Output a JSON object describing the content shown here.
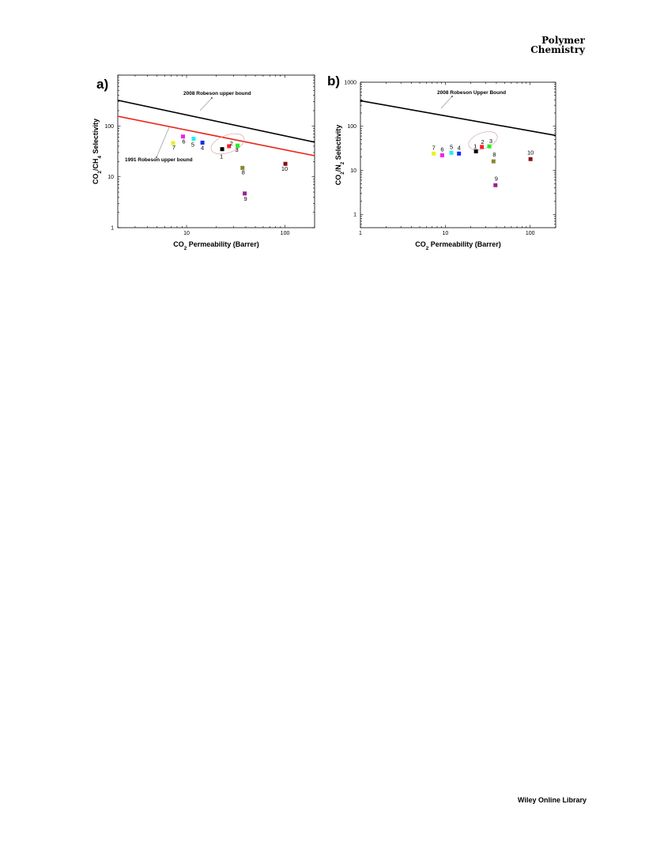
{
  "header": {
    "journal_line1": "Polymer",
    "journal_line2": "Chemistry"
  },
  "footer": {
    "publisher": "Wiley Online Library"
  },
  "chart_data": [
    {
      "type": "scatter",
      "panel": "a)",
      "xlabel": "CO2 Permeability (Barrer)",
      "ylabel": "CO2/CH4 Selectivity",
      "xscale": "log",
      "yscale": "log",
      "xlim": [
        2,
        200
      ],
      "ylim": [
        1,
        1000
      ],
      "xticks": [
        10,
        100
      ],
      "yticks": [
        1,
        10,
        100
      ],
      "points": [
        {
          "label": "1",
          "x": 23,
          "y": 35,
          "color": "#000000"
        },
        {
          "label": "2",
          "x": 27,
          "y": 40,
          "color": "#ff2020"
        },
        {
          "label": "3",
          "x": 33,
          "y": 41,
          "color": "#22ee22"
        },
        {
          "label": "4",
          "x": 14.5,
          "y": 47,
          "color": "#1030ee"
        },
        {
          "label": "5",
          "x": 11.8,
          "y": 56,
          "color": "#22eeee"
        },
        {
          "label": "6",
          "x": 9.2,
          "y": 62,
          "color": "#ee22ee"
        },
        {
          "label": "7",
          "x": 7.3,
          "y": 46,
          "color": "#eeee22"
        },
        {
          "label": "8",
          "x": 37,
          "y": 15,
          "color": "#888833"
        },
        {
          "label": "9",
          "x": 39,
          "y": 4.7,
          "color": "#992299"
        },
        {
          "label": "10",
          "x": 101,
          "y": 18,
          "color": "#881111"
        }
      ],
      "lines": [
        {
          "name": "2008 Robeson upper bound",
          "color": "#000000",
          "from": [
            2,
            320
          ],
          "to": [
            200,
            48
          ]
        },
        {
          "name": "1991 Robeson upper bound",
          "color": "#e8281c",
          "from": [
            2,
            155
          ],
          "to": [
            200,
            26
          ]
        }
      ],
      "annotations": [
        "2008 Robeson upper bound",
        "1991 Robeson upper bound"
      ]
    },
    {
      "type": "scatter",
      "panel": "b)",
      "xlabel": "CO2 Permeability (Barrer)",
      "ylabel": "CO2/N2 Selectivity",
      "xscale": "log",
      "yscale": "log",
      "xlim": [
        1,
        200
      ],
      "ylim": [
        0.5,
        1000
      ],
      "xticks": [
        1,
        10,
        100
      ],
      "yticks": [
        1,
        10,
        100,
        1000
      ],
      "points": [
        {
          "label": "1",
          "x": 23,
          "y": 27,
          "color": "#000000"
        },
        {
          "label": "2",
          "x": 27,
          "y": 34,
          "color": "#ff2020"
        },
        {
          "label": "3",
          "x": 33,
          "y": 35,
          "color": "#22ee22"
        },
        {
          "label": "4",
          "x": 14.5,
          "y": 24,
          "color": "#1030ee"
        },
        {
          "label": "5",
          "x": 11.8,
          "y": 25,
          "color": "#22eeee"
        },
        {
          "label": "6",
          "x": 9.2,
          "y": 22,
          "color": "#ee22ee"
        },
        {
          "label": "7",
          "x": 7.3,
          "y": 24,
          "color": "#eeee22"
        },
        {
          "label": "8",
          "x": 37,
          "y": 16,
          "color": "#888833"
        },
        {
          "label": "9",
          "x": 39,
          "y": 4.6,
          "color": "#992299"
        },
        {
          "label": "10",
          "x": 101,
          "y": 18,
          "color": "#881111"
        }
      ],
      "lines": [
        {
          "name": "2008 Robeson Upper Bound",
          "color": "#000000",
          "from": [
            1,
            380
          ],
          "to": [
            200,
            62
          ]
        }
      ],
      "annotations": [
        "2008 Robeson Upper Bound"
      ]
    }
  ]
}
